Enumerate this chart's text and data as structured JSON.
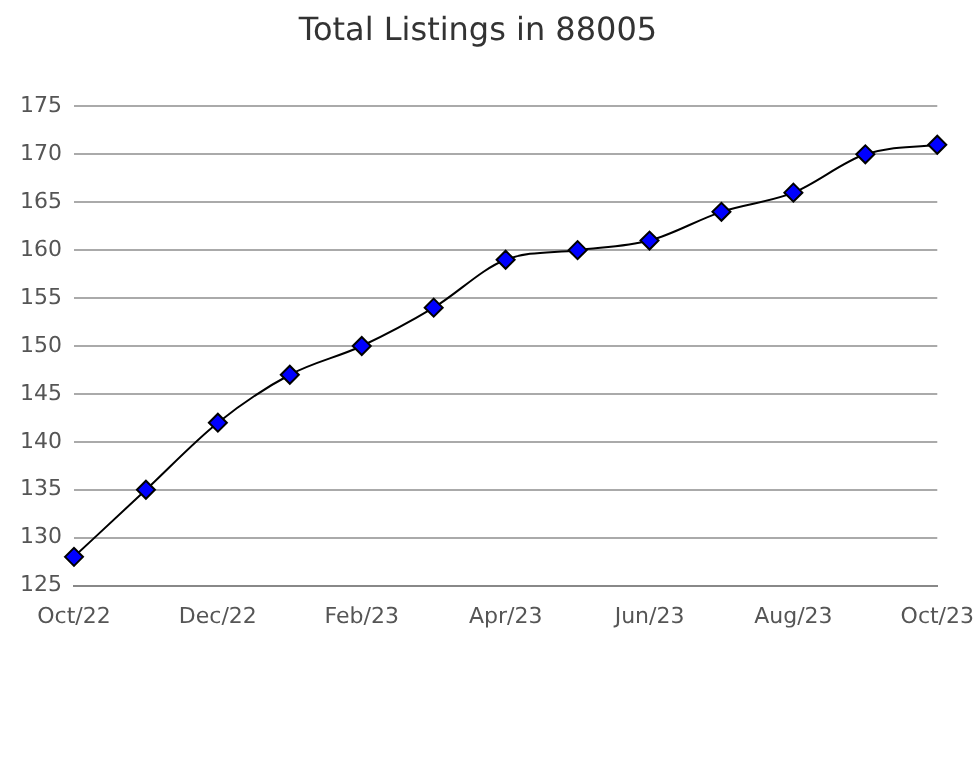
{
  "chart_data": {
    "type": "line",
    "title": "Total Listings in 88005",
    "categories": [
      "Oct/22",
      null,
      "Dec/22",
      null,
      "Feb/23",
      null,
      "Apr/23",
      null,
      "Jun/23",
      null,
      "Aug/23",
      null,
      "Oct/23"
    ],
    "series": [
      {
        "color": "#0000ff",
        "values": [
          128,
          135,
          142,
          147,
          150,
          154,
          159,
          160,
          161,
          164,
          166,
          170,
          171
        ]
      }
    ],
    "ylim": [
      125,
      175
    ],
    "yticks": [
      125,
      130,
      135,
      140,
      145,
      150,
      155,
      160,
      165,
      170,
      175
    ],
    "grid": "y",
    "legend": false,
    "marker": "diamond",
    "line_style": "solid"
  }
}
